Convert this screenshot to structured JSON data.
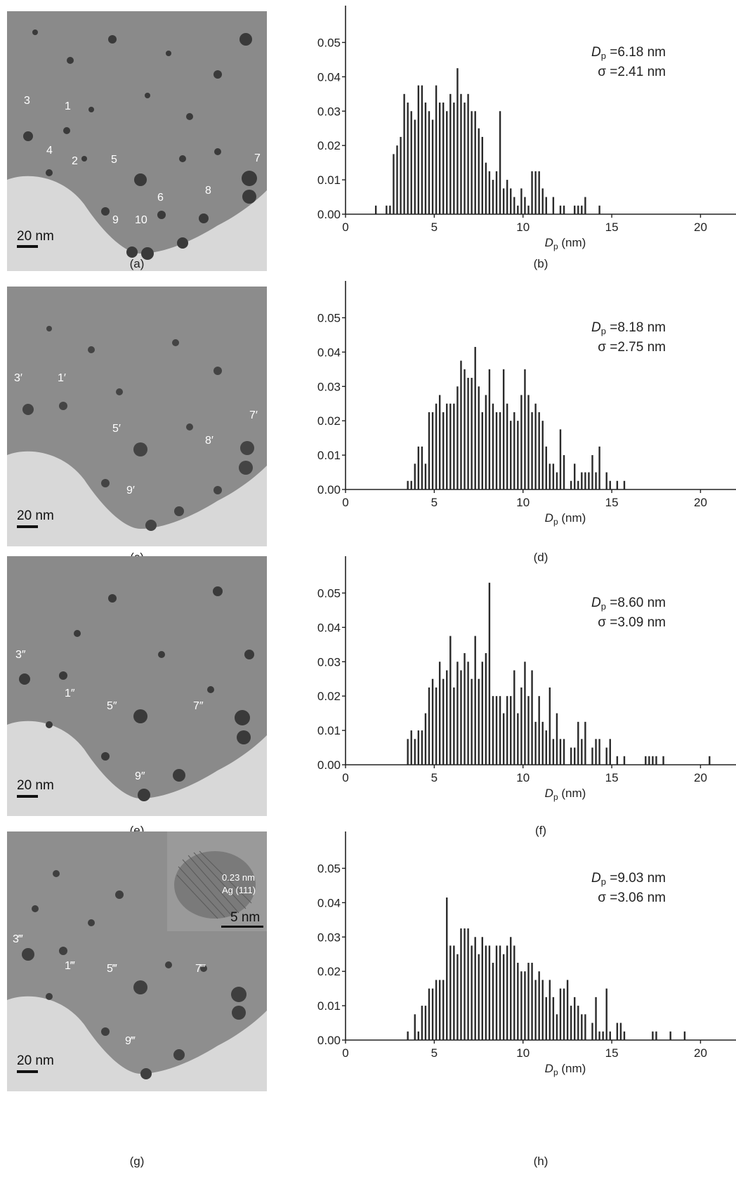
{
  "figure": {
    "panels": [
      {
        "tem": {
          "caption": "(a)",
          "scale_label": "20 nm",
          "labels": [
            "3",
            "1",
            "4",
            "2",
            "5",
            "7",
            "6",
            "8",
            "9",
            "10"
          ]
        },
        "hist": {
          "caption": "(b)",
          "stat_dp_symbol": "D",
          "stat_dp_sub": "p",
          "stat_dp_value": "=6.18 nm",
          "stat_sigma": "σ =2.41 nm"
        }
      },
      {
        "tem": {
          "caption": "(c)",
          "scale_label": "20 nm",
          "labels": [
            "3′",
            "1′",
            "5′",
            "7′",
            "8′",
            "9′"
          ]
        },
        "hist": {
          "caption": "(d)",
          "stat_dp_symbol": "D",
          "stat_dp_sub": "p",
          "stat_dp_value": "=8.18 nm",
          "stat_sigma": "σ =2.75 nm"
        }
      },
      {
        "tem": {
          "caption": "(e)",
          "scale_label": "20 nm",
          "labels": [
            "3″",
            "1″",
            "5″",
            "7″",
            "9″"
          ]
        },
        "hist": {
          "caption": "(f)",
          "stat_dp_symbol": "D",
          "stat_dp_sub": "p",
          "stat_dp_value": "=8.60 nm",
          "stat_sigma": "σ =3.09 nm"
        }
      },
      {
        "tem": {
          "caption": "(g)",
          "scale_label": "20 nm",
          "labels": [
            "3‴",
            "1‴",
            "5‴",
            "7‴",
            "9‴"
          ],
          "inset": {
            "lattice_label": "0.23 nm",
            "phase_label": "Ag (111)",
            "scale_label": "5 nm"
          }
        },
        "hist": {
          "caption": "(h)",
          "stat_dp_symbol": "D",
          "stat_dp_sub": "p",
          "stat_dp_value": "=9.03 nm",
          "stat_sigma": "σ =3.06 nm"
        }
      }
    ]
  },
  "chart_data": [
    {
      "type": "bar",
      "xlabel_symbol": "D",
      "xlabel_sub": "p",
      "xlabel_unit": "(nm)",
      "xlim": [
        0,
        22
      ],
      "ylim": [
        0,
        0.055
      ],
      "xticks": [
        "0",
        "5",
        "10",
        "15",
        "20"
      ],
      "yticks": [
        "0.00",
        "0.01",
        "0.02",
        "0.03",
        "0.04",
        "0.05"
      ],
      "x": [
        1.7,
        2.3,
        2.5,
        2.7,
        2.9,
        3.1,
        3.3,
        3.5,
        3.7,
        3.9,
        4.1,
        4.3,
        4.5,
        4.7,
        4.9,
        5.1,
        5.3,
        5.5,
        5.7,
        5.9,
        6.1,
        6.3,
        6.5,
        6.7,
        6.9,
        7.1,
        7.3,
        7.5,
        7.7,
        7.9,
        8.1,
        8.3,
        8.5,
        8.7,
        8.9,
        9.1,
        9.3,
        9.5,
        9.7,
        9.9,
        10.1,
        10.3,
        10.5,
        10.7,
        10.9,
        11.1,
        11.3,
        11.7,
        12.1,
        12.3,
        12.9,
        13.1,
        13.3,
        13.5,
        14.3
      ],
      "values": [
        0.0025,
        0.0025,
        0.0025,
        0.0175,
        0.02,
        0.0225,
        0.035,
        0.0325,
        0.03,
        0.0275,
        0.0375,
        0.0375,
        0.0325,
        0.03,
        0.0275,
        0.0375,
        0.0325,
        0.0325,
        0.03,
        0.035,
        0.0325,
        0.0425,
        0.035,
        0.0325,
        0.035,
        0.03,
        0.03,
        0.025,
        0.0225,
        0.015,
        0.0125,
        0.01,
        0.0125,
        0.03,
        0.0075,
        0.01,
        0.0075,
        0.005,
        0.0025,
        0.0075,
        0.005,
        0.0025,
        0.0125,
        0.0125,
        0.0125,
        0.0075,
        0.005,
        0.005,
        0.0025,
        0.0025,
        0.0025,
        0.0025,
        0.0025,
        0.005,
        0.0025
      ]
    },
    {
      "type": "bar",
      "xlabel_symbol": "D",
      "xlabel_sub": "p",
      "xlabel_unit": "(nm)",
      "xlim": [
        0,
        22
      ],
      "ylim": [
        0,
        0.055
      ],
      "xticks": [
        "0",
        "5",
        "10",
        "15",
        "20"
      ],
      "yticks": [
        "0.00",
        "0.01",
        "0.02",
        "0.03",
        "0.04",
        "0.05"
      ],
      "x": [
        3.5,
        3.7,
        3.9,
        4.1,
        4.3,
        4.5,
        4.7,
        4.9,
        5.1,
        5.3,
        5.5,
        5.7,
        5.9,
        6.1,
        6.3,
        6.5,
        6.7,
        6.9,
        7.1,
        7.3,
        7.5,
        7.7,
        7.9,
        8.1,
        8.3,
        8.5,
        8.7,
        8.9,
        9.1,
        9.3,
        9.5,
        9.7,
        9.9,
        10.1,
        10.3,
        10.5,
        10.7,
        10.9,
        11.1,
        11.3,
        11.5,
        11.7,
        11.9,
        12.1,
        12.3,
        12.7,
        12.9,
        13.1,
        13.3,
        13.5,
        13.7,
        13.9,
        14.1,
        14.3,
        14.7,
        14.9,
        15.3,
        15.7
      ],
      "values": [
        0.0025,
        0.0025,
        0.0075,
        0.0125,
        0.0125,
        0.0075,
        0.0225,
        0.0225,
        0.025,
        0.0275,
        0.0225,
        0.025,
        0.025,
        0.025,
        0.03,
        0.0375,
        0.035,
        0.0325,
        0.0325,
        0.0415,
        0.03,
        0.0225,
        0.0275,
        0.035,
        0.025,
        0.0225,
        0.0225,
        0.035,
        0.025,
        0.02,
        0.0225,
        0.02,
        0.0275,
        0.035,
        0.0275,
        0.0225,
        0.025,
        0.0225,
        0.02,
        0.0125,
        0.0075,
        0.0075,
        0.005,
        0.0175,
        0.01,
        0.0025,
        0.0075,
        0.0025,
        0.005,
        0.005,
        0.005,
        0.01,
        0.005,
        0.0125,
        0.005,
        0.0025,
        0.0025,
        0.0025
      ]
    },
    {
      "type": "bar",
      "xlabel_symbol": "D",
      "xlabel_sub": "p",
      "xlabel_unit": "(nm)",
      "xlim": [
        0,
        22
      ],
      "ylim": [
        0,
        0.055
      ],
      "xticks": [
        "0",
        "5",
        "10",
        "15",
        "20"
      ],
      "yticks": [
        "0.00",
        "0.01",
        "0.02",
        "0.03",
        "0.04",
        "0.05"
      ],
      "x": [
        3.5,
        3.7,
        3.9,
        4.1,
        4.3,
        4.5,
        4.7,
        4.9,
        5.1,
        5.3,
        5.5,
        5.7,
        5.9,
        6.1,
        6.3,
        6.5,
        6.7,
        6.9,
        7.1,
        7.3,
        7.5,
        7.7,
        7.9,
        8.1,
        8.3,
        8.5,
        8.7,
        8.9,
        9.1,
        9.3,
        9.5,
        9.7,
        9.9,
        10.1,
        10.3,
        10.5,
        10.7,
        10.9,
        11.1,
        11.3,
        11.5,
        11.7,
        11.9,
        12.1,
        12.3,
        12.7,
        12.9,
        13.1,
        13.3,
        13.5,
        13.9,
        14.1,
        14.3,
        14.7,
        14.9,
        15.3,
        15.7,
        16.9,
        17.1,
        17.3,
        17.5,
        17.9,
        20.5
      ],
      "values": [
        0.0075,
        0.01,
        0.0075,
        0.01,
        0.01,
        0.015,
        0.0225,
        0.025,
        0.0225,
        0.03,
        0.025,
        0.0275,
        0.0375,
        0.0225,
        0.03,
        0.0275,
        0.0325,
        0.03,
        0.025,
        0.0375,
        0.025,
        0.03,
        0.0325,
        0.053,
        0.02,
        0.02,
        0.02,
        0.015,
        0.02,
        0.02,
        0.0275,
        0.015,
        0.0225,
        0.03,
        0.02,
        0.0275,
        0.0125,
        0.02,
        0.0125,
        0.01,
        0.0225,
        0.0075,
        0.015,
        0.0075,
        0.0075,
        0.005,
        0.005,
        0.0125,
        0.0075,
        0.0125,
        0.005,
        0.0075,
        0.0075,
        0.005,
        0.0075,
        0.0025,
        0.0025,
        0.0025,
        0.0025,
        0.0025,
        0.0025,
        0.0025,
        0.0025
      ]
    },
    {
      "type": "bar",
      "xlabel_symbol": "D",
      "xlabel_sub": "p",
      "xlabel_unit": "(nm)",
      "xlim": [
        0,
        22
      ],
      "ylim": [
        0,
        0.055
      ],
      "xticks": [
        "0",
        "5",
        "10",
        "15",
        "20"
      ],
      "yticks": [
        "0.00",
        "0.01",
        "0.02",
        "0.03",
        "0.04",
        "0.05"
      ],
      "x": [
        3.5,
        3.9,
        4.1,
        4.3,
        4.5,
        4.7,
        4.9,
        5.1,
        5.3,
        5.5,
        5.7,
        5.9,
        6.1,
        6.3,
        6.5,
        6.7,
        6.9,
        7.1,
        7.3,
        7.5,
        7.7,
        7.9,
        8.1,
        8.3,
        8.5,
        8.7,
        8.9,
        9.1,
        9.3,
        9.5,
        9.7,
        9.9,
        10.1,
        10.3,
        10.5,
        10.7,
        10.9,
        11.1,
        11.3,
        11.5,
        11.7,
        11.9,
        12.1,
        12.3,
        12.5,
        12.7,
        12.9,
        13.1,
        13.3,
        13.5,
        13.9,
        14.1,
        14.3,
        14.5,
        14.7,
        14.9,
        15.3,
        15.5,
        15.7,
        17.3,
        17.5,
        18.3,
        19.1
      ],
      "values": [
        0.0025,
        0.0075,
        0.0025,
        0.01,
        0.01,
        0.015,
        0.015,
        0.0175,
        0.0175,
        0.0175,
        0.0415,
        0.0275,
        0.0275,
        0.025,
        0.0325,
        0.0325,
        0.0325,
        0.0275,
        0.03,
        0.025,
        0.03,
        0.0275,
        0.0275,
        0.0225,
        0.0275,
        0.0275,
        0.025,
        0.0275,
        0.03,
        0.0275,
        0.0225,
        0.02,
        0.02,
        0.0225,
        0.0225,
        0.0175,
        0.02,
        0.0175,
        0.0125,
        0.0175,
        0.0125,
        0.0075,
        0.015,
        0.015,
        0.0175,
        0.01,
        0.0125,
        0.01,
        0.0075,
        0.0075,
        0.005,
        0.0125,
        0.0025,
        0.0025,
        0.015,
        0.0025,
        0.005,
        0.005,
        0.0025,
        0.0025,
        0.0025,
        0.0025,
        0.0025
      ]
    }
  ]
}
